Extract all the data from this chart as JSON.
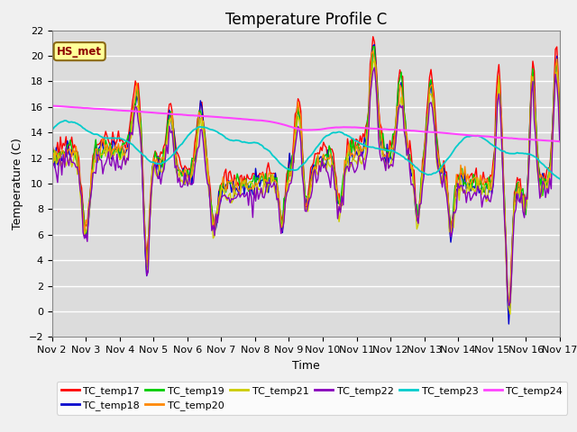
{
  "title": "Temperature Profile C",
  "xlabel": "Time",
  "ylabel": "Temperature (C)",
  "ylim": [
    -2,
    22
  ],
  "yticks": [
    -2,
    0,
    2,
    4,
    6,
    8,
    10,
    12,
    14,
    16,
    18,
    20,
    22
  ],
  "xtick_labels": [
    "Nov 2",
    "Nov 3",
    "Nov 4",
    "Nov 5",
    "Nov 6",
    "Nov 7",
    "Nov 8",
    "Nov 9",
    "Nov 10",
    "Nov 11",
    "Nov 12",
    "Nov 13",
    "Nov 14",
    "Nov 15",
    "Nov 16",
    "Nov 17"
  ],
  "series_order": [
    "TC_temp17",
    "TC_temp18",
    "TC_temp19",
    "TC_temp20",
    "TC_temp21",
    "TC_temp22",
    "TC_temp23",
    "TC_temp24"
  ],
  "series": {
    "TC_temp17": {
      "color": "#FF0000",
      "lw": 1.0
    },
    "TC_temp18": {
      "color": "#0000CC",
      "lw": 1.0
    },
    "TC_temp19": {
      "color": "#00CC00",
      "lw": 1.0
    },
    "TC_temp20": {
      "color": "#FF8800",
      "lw": 1.0
    },
    "TC_temp21": {
      "color": "#CCCC00",
      "lw": 1.0
    },
    "TC_temp22": {
      "color": "#8800BB",
      "lw": 1.0
    },
    "TC_temp23": {
      "color": "#00CCCC",
      "lw": 1.3
    },
    "TC_temp24": {
      "color": "#FF44FF",
      "lw": 1.5
    }
  },
  "annotation_text": "HS_met",
  "annotation_color": "#8B0000",
  "annotation_bg": "#FFFF99",
  "annotation_border": "#8B6914",
  "bg_color": "#DCDCDC",
  "fig_bg_color": "#F0F0F0",
  "grid_color": "#FFFFFF",
  "title_fontsize": 12,
  "label_fontsize": 9,
  "tick_fontsize": 8,
  "legend_fontsize": 8
}
